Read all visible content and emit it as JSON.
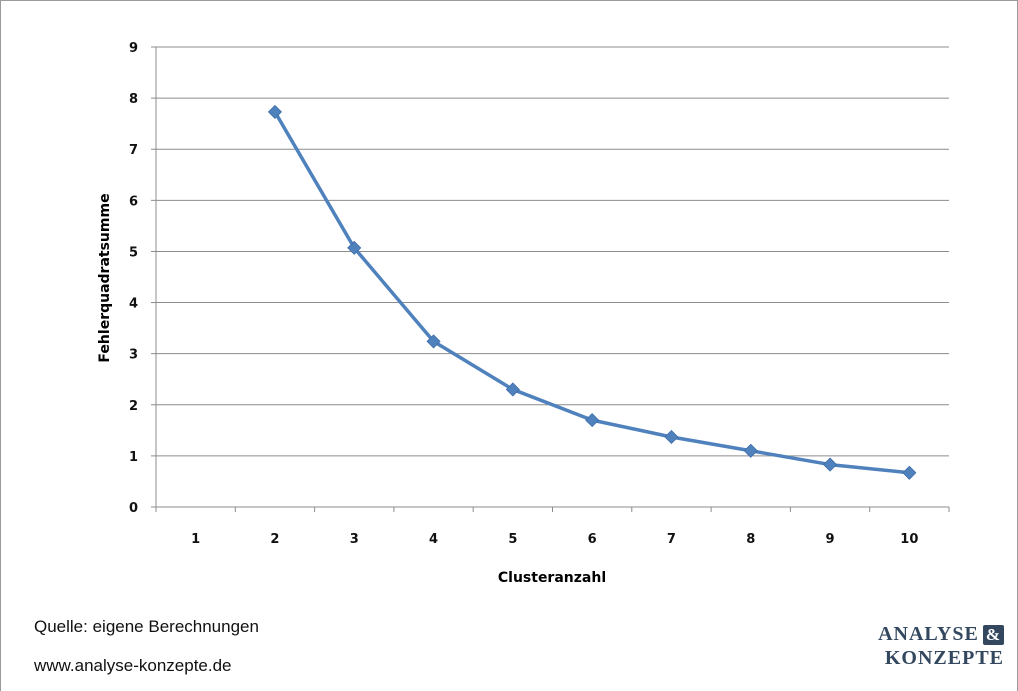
{
  "chart_data": {
    "type": "line",
    "xlabel": "Clusteranzahl",
    "ylabel": "Fehlerquadratsumme",
    "categories": [
      "1",
      "2",
      "3",
      "4",
      "5",
      "6",
      "7",
      "8",
      "9",
      "10"
    ],
    "y_ticks": [
      "0",
      "1",
      "2",
      "3",
      "4",
      "5",
      "6",
      "7",
      "8",
      "9"
    ],
    "ylim": [
      0,
      9
    ],
    "grid": true,
    "series": [
      {
        "values": [
          null,
          7.73,
          5.07,
          3.24,
          2.3,
          1.7,
          1.37,
          1.1,
          0.83,
          0.67
        ],
        "color": "#4f81bd"
      }
    ]
  },
  "footer": {
    "source": "Quelle: eigene Berechnungen",
    "url": "www.analyse-konzepte.de"
  },
  "logo": {
    "line1": "ANALYSE",
    "amp": "&",
    "line2": "KONZEPTE",
    "color": "#33485f"
  }
}
